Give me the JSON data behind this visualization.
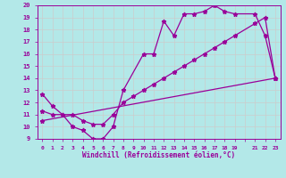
{
  "xlabel": "Windchill (Refroidissement éolien,°C)",
  "line_color": "#990099",
  "bg_color": "#b3e8e8",
  "grid_color": "#cccccc",
  "axes_color": "#990099",
  "spine_color": "#990099",
  "xlim": [
    -0.5,
    23.5
  ],
  "ylim": [
    9,
    20
  ],
  "yticks": [
    9,
    10,
    11,
    12,
    13,
    14,
    15,
    16,
    17,
    18,
    19,
    20
  ],
  "line1_x": [
    0,
    1,
    2,
    3,
    4,
    5,
    6,
    7,
    8,
    10,
    11,
    12,
    13,
    14,
    15,
    16,
    17,
    18,
    19,
    21,
    22,
    23
  ],
  "line1_y": [
    12.7,
    11.7,
    11.0,
    10.0,
    9.7,
    9.0,
    9.0,
    10.0,
    13.0,
    16.0,
    16.0,
    18.7,
    17.5,
    19.3,
    19.3,
    19.5,
    20.0,
    19.5,
    19.3,
    19.3,
    17.5,
    14.0
  ],
  "line2_x": [
    0,
    1,
    2,
    3,
    4,
    5,
    6,
    7,
    8,
    9,
    10,
    11,
    12,
    13,
    14,
    15,
    16,
    17,
    18,
    19,
    21,
    22,
    23
  ],
  "line2_y": [
    11.3,
    11.0,
    11.0,
    11.0,
    10.5,
    10.2,
    10.2,
    11.0,
    12.0,
    12.5,
    13.0,
    13.5,
    14.0,
    14.5,
    15.0,
    15.5,
    16.0,
    16.5,
    17.0,
    17.5,
    18.5,
    19.0,
    14.0
  ],
  "line3_x": [
    0,
    23
  ],
  "line3_y": [
    10.5,
    14.0
  ],
  "marker": "*",
  "markersize": 3.5,
  "linewidth": 0.9
}
